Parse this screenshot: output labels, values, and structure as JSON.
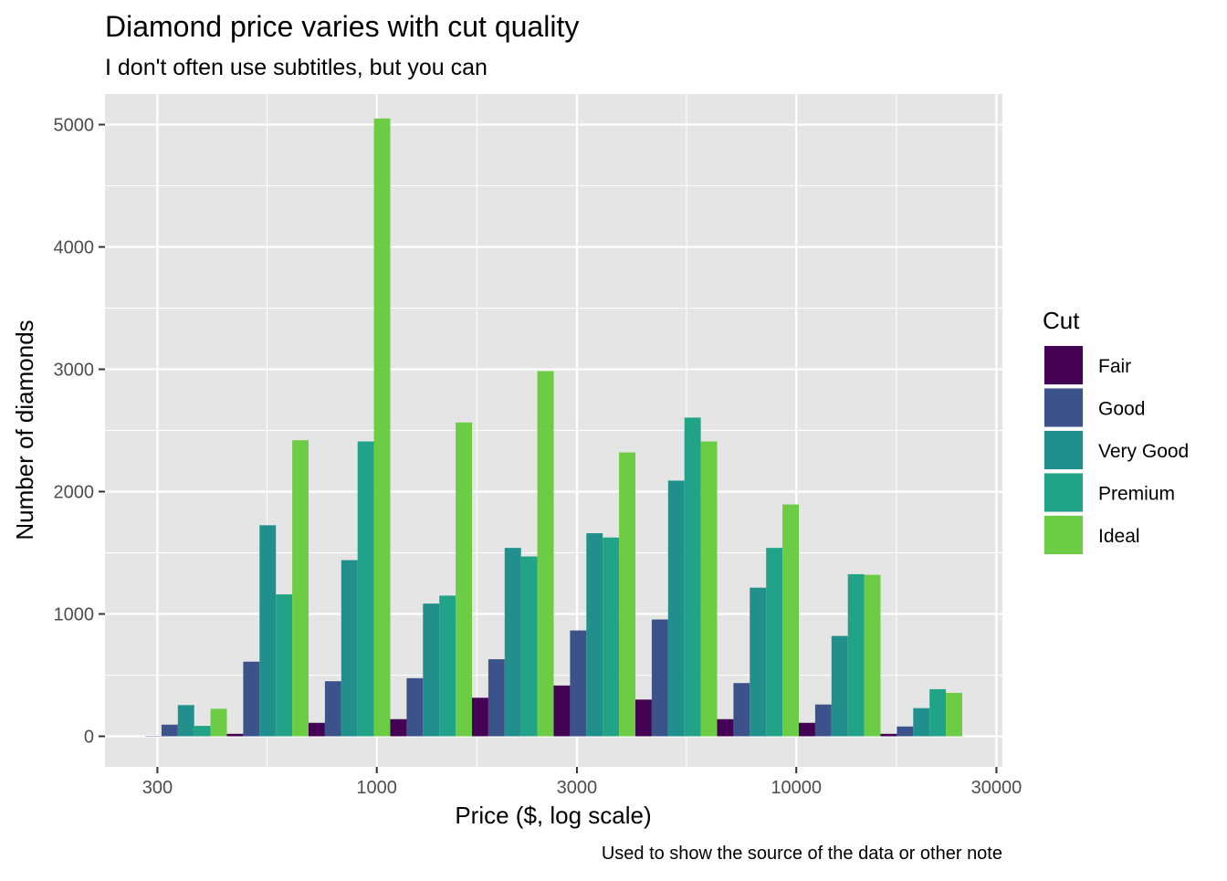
{
  "chart_data": {
    "type": "bar",
    "title": "Diamond price varies with cut quality",
    "subtitle": "I don't often use subtitles, but you can",
    "caption": "Used to show the source of the data or other note",
    "xlabel": "Price ($, log scale)",
    "ylabel": "Number of diamonds",
    "x_scale": "log",
    "x_ticks": [
      300,
      1000,
      3000,
      10000,
      30000
    ],
    "xlim": [
      225,
      31000
    ],
    "y_ticks": [
      0,
      1000,
      2000,
      3000,
      4000,
      5000
    ],
    "ylim": [
      -250,
      5250
    ],
    "grid": true,
    "legend": {
      "title": "Cut",
      "position": "right"
    },
    "series": [
      {
        "name": "Fair",
        "color": "#440154",
        "values": [
          2,
          20,
          110,
          140,
          315,
          415,
          300,
          140,
          110,
          20
        ]
      },
      {
        "name": "Good",
        "color": "#3b528b",
        "values": [
          95,
          610,
          450,
          475,
          630,
          865,
          955,
          435,
          260,
          80
        ]
      },
      {
        "name": "Very Good",
        "color": "#21908d",
        "values": [
          255,
          1725,
          1440,
          1085,
          1540,
          1660,
          2090,
          1215,
          820,
          230
        ]
      },
      {
        "name": "Premium",
        "color": "#20a386",
        "values": [
          85,
          1160,
          2410,
          1150,
          1470,
          1625,
          2605,
          1540,
          1325,
          385
        ]
      },
      {
        "name": "Ideal",
        "color": "#6ccd45",
        "values": [
          225,
          2420,
          5050,
          2565,
          2985,
          2320,
          2410,
          1895,
          1320,
          355
        ]
      }
    ]
  }
}
